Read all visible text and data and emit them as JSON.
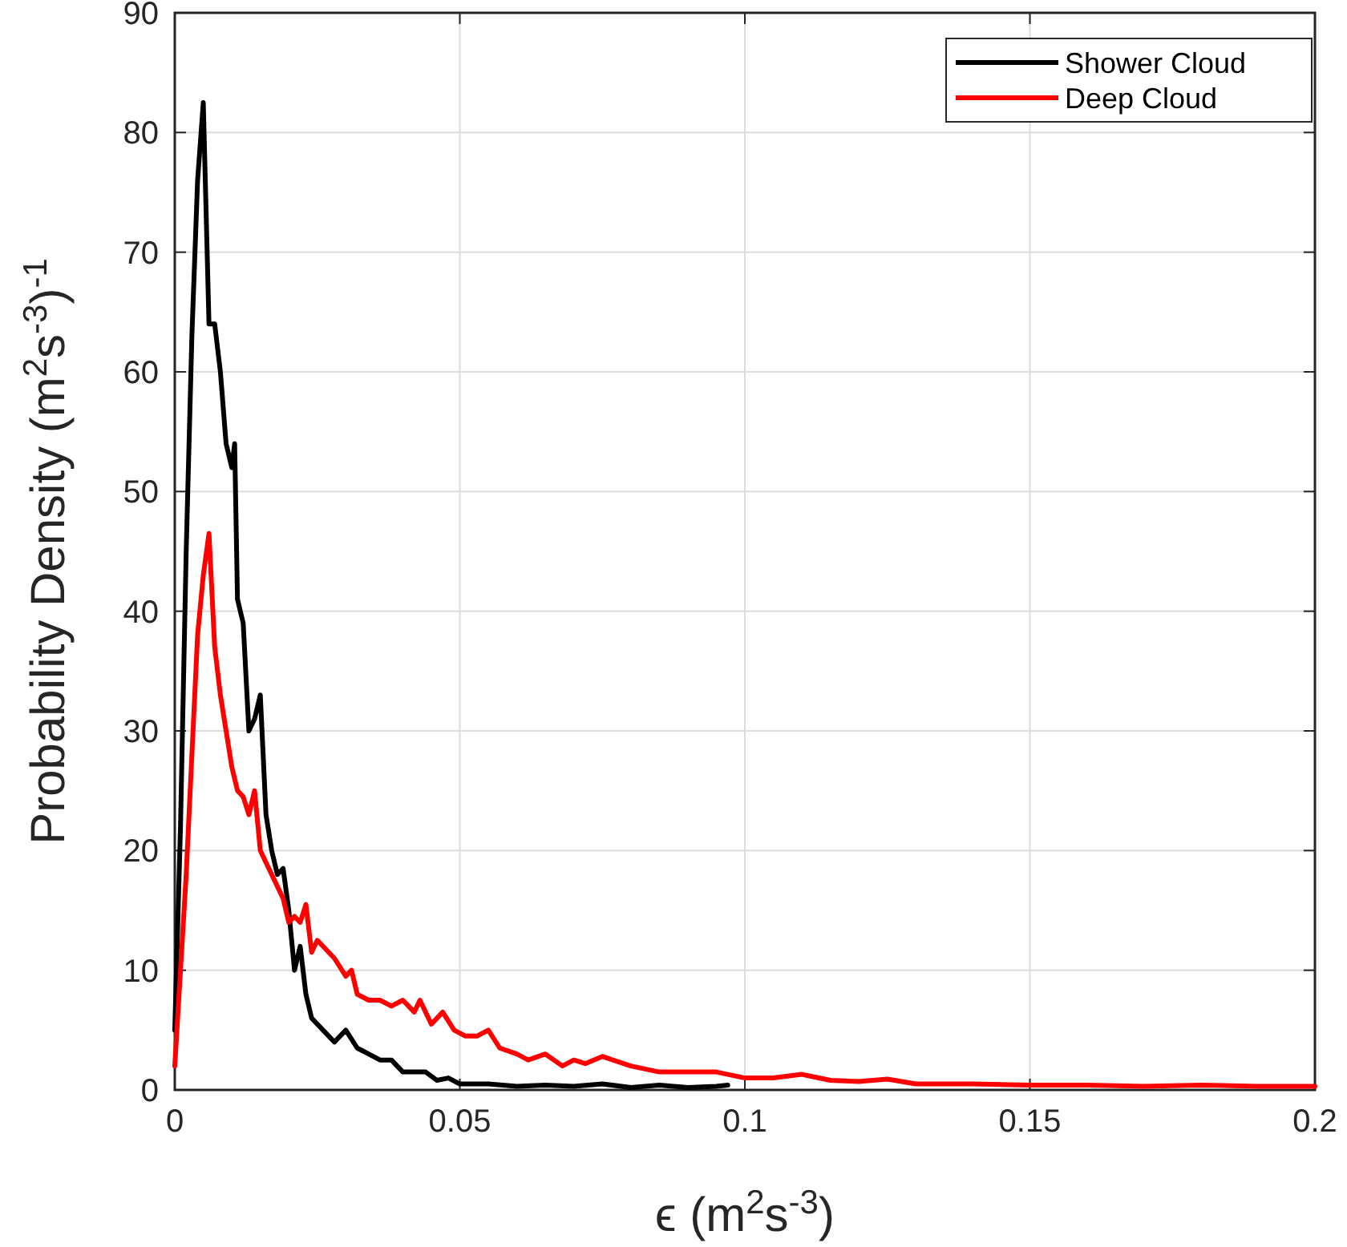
{
  "chart_data": {
    "type": "line",
    "xlabel": "ϵ (m$^{2}$s$^{-3}$)",
    "ylabel": "Probability Density (m$^{2}$s$^{-3}$)$^{-1}$",
    "xlim": [
      0,
      0.2
    ],
    "ylim": [
      0,
      90
    ],
    "xticks": [
      0,
      0.05,
      0.1,
      0.15,
      0.2
    ],
    "yticks": [
      0,
      10,
      20,
      30,
      40,
      50,
      60,
      70,
      80,
      90
    ],
    "grid": true,
    "legend": "top right",
    "line_style": "solid",
    "marker": "none",
    "series": [
      {
        "name": "Shower Cloud",
        "color": "#000000",
        "x": [
          0,
          0.001,
          0.002,
          0.003,
          0.004,
          0.005,
          0.006,
          0.007,
          0.008,
          0.009,
          0.01,
          0.0105,
          0.011,
          0.012,
          0.013,
          0.014,
          0.015,
          0.016,
          0.017,
          0.018,
          0.019,
          0.02,
          0.021,
          0.022,
          0.023,
          0.024,
          0.026,
          0.028,
          0.03,
          0.032,
          0.034,
          0.036,
          0.038,
          0.04,
          0.042,
          0.044,
          0.046,
          0.048,
          0.05,
          0.055,
          0.06,
          0.065,
          0.07,
          0.075,
          0.08,
          0.085,
          0.09,
          0.095,
          0.097
        ],
        "values": [
          5,
          22,
          45,
          63,
          76,
          82.5,
          64,
          64,
          60,
          54,
          52,
          54,
          41,
          39,
          30,
          31,
          33,
          23,
          20,
          18,
          18.5,
          15,
          10,
          12,
          8,
          6,
          5,
          4,
          5,
          3.5,
          3,
          2.5,
          2.5,
          1.5,
          1.5,
          1.5,
          0.8,
          1,
          0.5,
          0.5,
          0.3,
          0.4,
          0.3,
          0.5,
          0.2,
          0.4,
          0.2,
          0.3,
          0.4
        ]
      },
      {
        "name": "Deep Cloud",
        "color": "#ff0000",
        "x": [
          0,
          0.002,
          0.003,
          0.004,
          0.005,
          0.006,
          0.007,
          0.008,
          0.009,
          0.01,
          0.011,
          0.012,
          0.013,
          0.014,
          0.015,
          0.016,
          0.017,
          0.018,
          0.019,
          0.02,
          0.021,
          0.022,
          0.023,
          0.024,
          0.025,
          0.026,
          0.027,
          0.028,
          0.03,
          0.031,
          0.032,
          0.034,
          0.036,
          0.038,
          0.04,
          0.042,
          0.043,
          0.045,
          0.047,
          0.049,
          0.051,
          0.053,
          0.055,
          0.057,
          0.06,
          0.062,
          0.065,
          0.068,
          0.07,
          0.072,
          0.075,
          0.08,
          0.085,
          0.09,
          0.095,
          0.1,
          0.105,
          0.11,
          0.115,
          0.12,
          0.125,
          0.13,
          0.14,
          0.15,
          0.16,
          0.17,
          0.18,
          0.19,
          0.2
        ],
        "values": [
          2,
          18,
          28,
          38,
          43,
          46.5,
          37,
          33,
          30,
          27,
          25,
          24.5,
          23,
          25,
          20,
          19,
          18,
          17,
          16,
          14,
          14.5,
          14,
          15.5,
          11.5,
          12.5,
          12,
          11.5,
          11,
          9.5,
          10,
          8,
          7.5,
          7.5,
          7,
          7.5,
          6.5,
          7.5,
          5.5,
          6.5,
          5,
          4.5,
          4.5,
          5,
          3.5,
          3,
          2.5,
          3,
          2,
          2.5,
          2.2,
          2.8,
          2,
          1.5,
          1.5,
          1.5,
          1,
          1,
          1.3,
          0.8,
          0.7,
          0.9,
          0.5,
          0.5,
          0.4,
          0.4,
          0.3,
          0.4,
          0.3,
          0.3
        ]
      }
    ]
  }
}
